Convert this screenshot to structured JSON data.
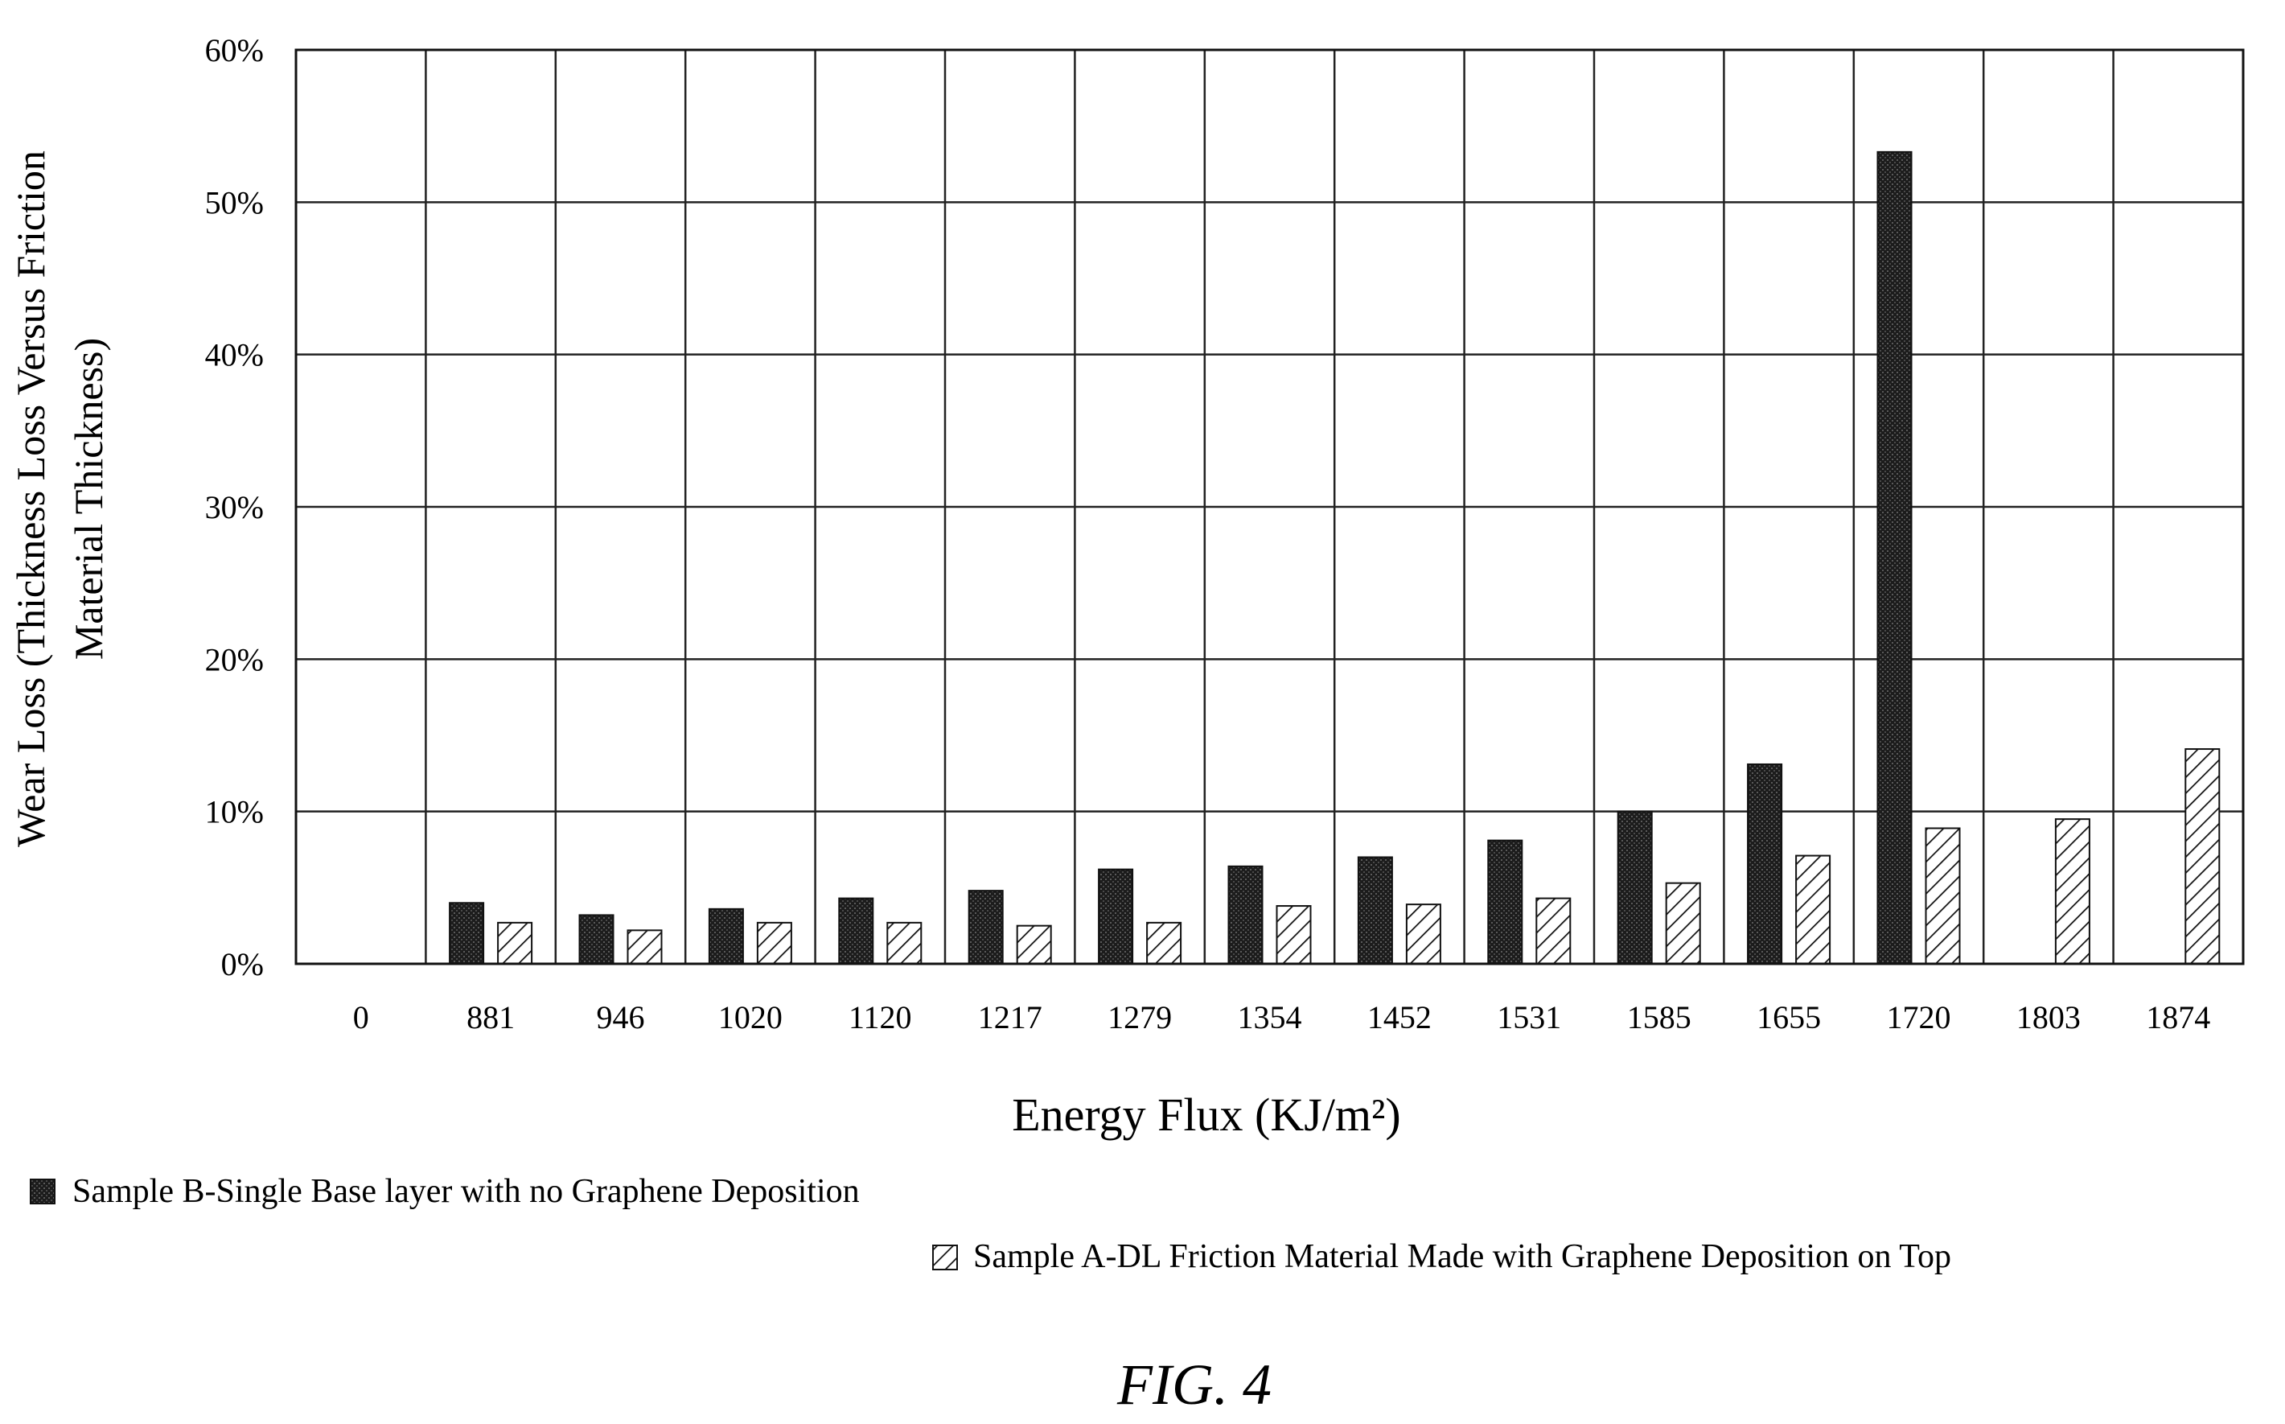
{
  "chart_data": {
    "type": "bar",
    "xlabel": "Energy Flux (KJ/m²)",
    "ylabel_lines": [
      "Wear Loss (Thickness Loss Versus Friction",
      "Material Thickness)"
    ],
    "ylim": [
      0,
      0.6
    ],
    "yticks": [
      "0%",
      "10%",
      "20%",
      "30%",
      "40%",
      "50%",
      "60%"
    ],
    "grid": true,
    "legend_placement": "bottom",
    "categories": [
      "0",
      "881",
      "946",
      "1020",
      "1120",
      "1217",
      "1279",
      "1354",
      "1452",
      "1531",
      "1585",
      "1655",
      "1720",
      "1803",
      "1874"
    ],
    "series": [
      {
        "name": "Sample B-Single Base layer with no Graphene Deposition",
        "pattern": "solid-dark",
        "color": "#1a1a1a",
        "values": [
          0,
          0.04,
          0.032,
          0.036,
          0.043,
          0.048,
          0.062,
          0.064,
          0.07,
          0.081,
          0.1,
          0.131,
          0.533,
          0,
          0
        ]
      },
      {
        "name": "Sample A-DL Friction Material Made with Graphene Deposition on Top",
        "pattern": "diagonal-hatch",
        "color": "#ffffff",
        "values": [
          0,
          0.027,
          0.022,
          0.027,
          0.027,
          0.025,
          0.027,
          0.038,
          0.039,
          0.043,
          0.053,
          0.071,
          0.089,
          0.095,
          0.141
        ]
      }
    ]
  },
  "figure_label": "FIG. 4"
}
